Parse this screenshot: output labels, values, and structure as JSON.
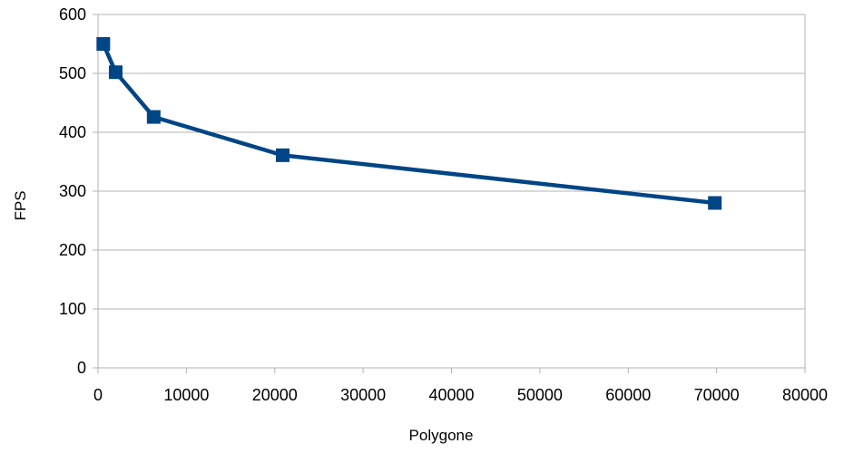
{
  "chart_data": {
    "type": "scatter",
    "title": "",
    "xlabel": "Polygone",
    "ylabel": "FPS",
    "xlim": [
      0,
      80000
    ],
    "ylim": [
      0,
      600
    ],
    "x_ticks": [
      0,
      10000,
      20000,
      30000,
      40000,
      50000,
      60000,
      70000,
      80000
    ],
    "y_ticks": [
      0,
      100,
      200,
      300,
      400,
      500,
      600
    ],
    "grid": "horizontal",
    "legend": "none",
    "series": [
      {
        "color": "#004586",
        "marker": "square",
        "line": "straight",
        "points": [
          {
            "x": 600,
            "y": 550
          },
          {
            "x": 2000,
            "y": 502
          },
          {
            "x": 6300,
            "y": 426
          },
          {
            "x": 20900,
            "y": 361
          },
          {
            "x": 69800,
            "y": 280
          }
        ]
      }
    ]
  }
}
